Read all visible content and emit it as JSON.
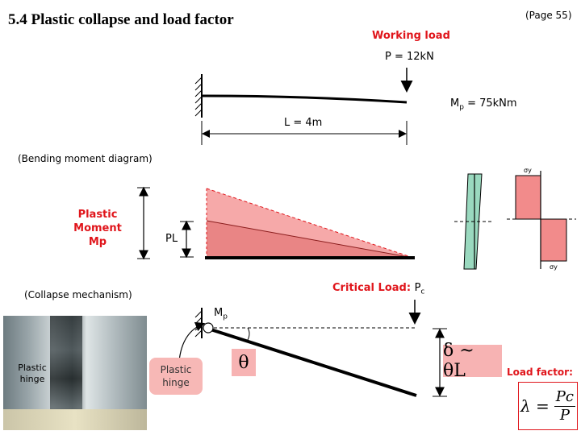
{
  "header": {
    "title": "5.4   Plastic collapse and load factor",
    "page_ref": "(Page 55)"
  },
  "top_beam": {
    "working_load_label": "Working load",
    "load_value": "P = 12kN",
    "length_label": "L = 4m",
    "mp_symbol": "M",
    "mp_subscript": "p",
    "mp_value": " = 75kNm"
  },
  "bmd": {
    "caption": "(Bending moment diagram)",
    "plastic_moment_line1": "Plastic",
    "plastic_moment_line2": "Moment Mp",
    "pl_label": "PL",
    "sigma_top": "σy",
    "sigma_bottom": "σy"
  },
  "collapse": {
    "caption": "(Collapse mechanism)",
    "critical_load_label": "Critical Load: ",
    "critical_load_symbol": "P",
    "critical_load_subscript": "c",
    "mp_symbol": "M",
    "mp_subscript": "p",
    "hinge_line1": "Plastic",
    "hinge_line2": "hinge",
    "photo_label_line1": "Plastic",
    "photo_label_line2": "hinge",
    "theta": "θ",
    "delta_relation": "δ ~ θL",
    "load_factor_label": "Load factor:",
    "formula_lhs": "λ =",
    "formula_num": "Pc",
    "formula_den": "P"
  },
  "colors": {
    "accent_red": "#e0151b",
    "bmd_fill": "#f28b8b",
    "bmd_fill_light": "#f6a9a9",
    "stress_green": "#9ad9bf",
    "box_pink": "#f7b3b3"
  }
}
